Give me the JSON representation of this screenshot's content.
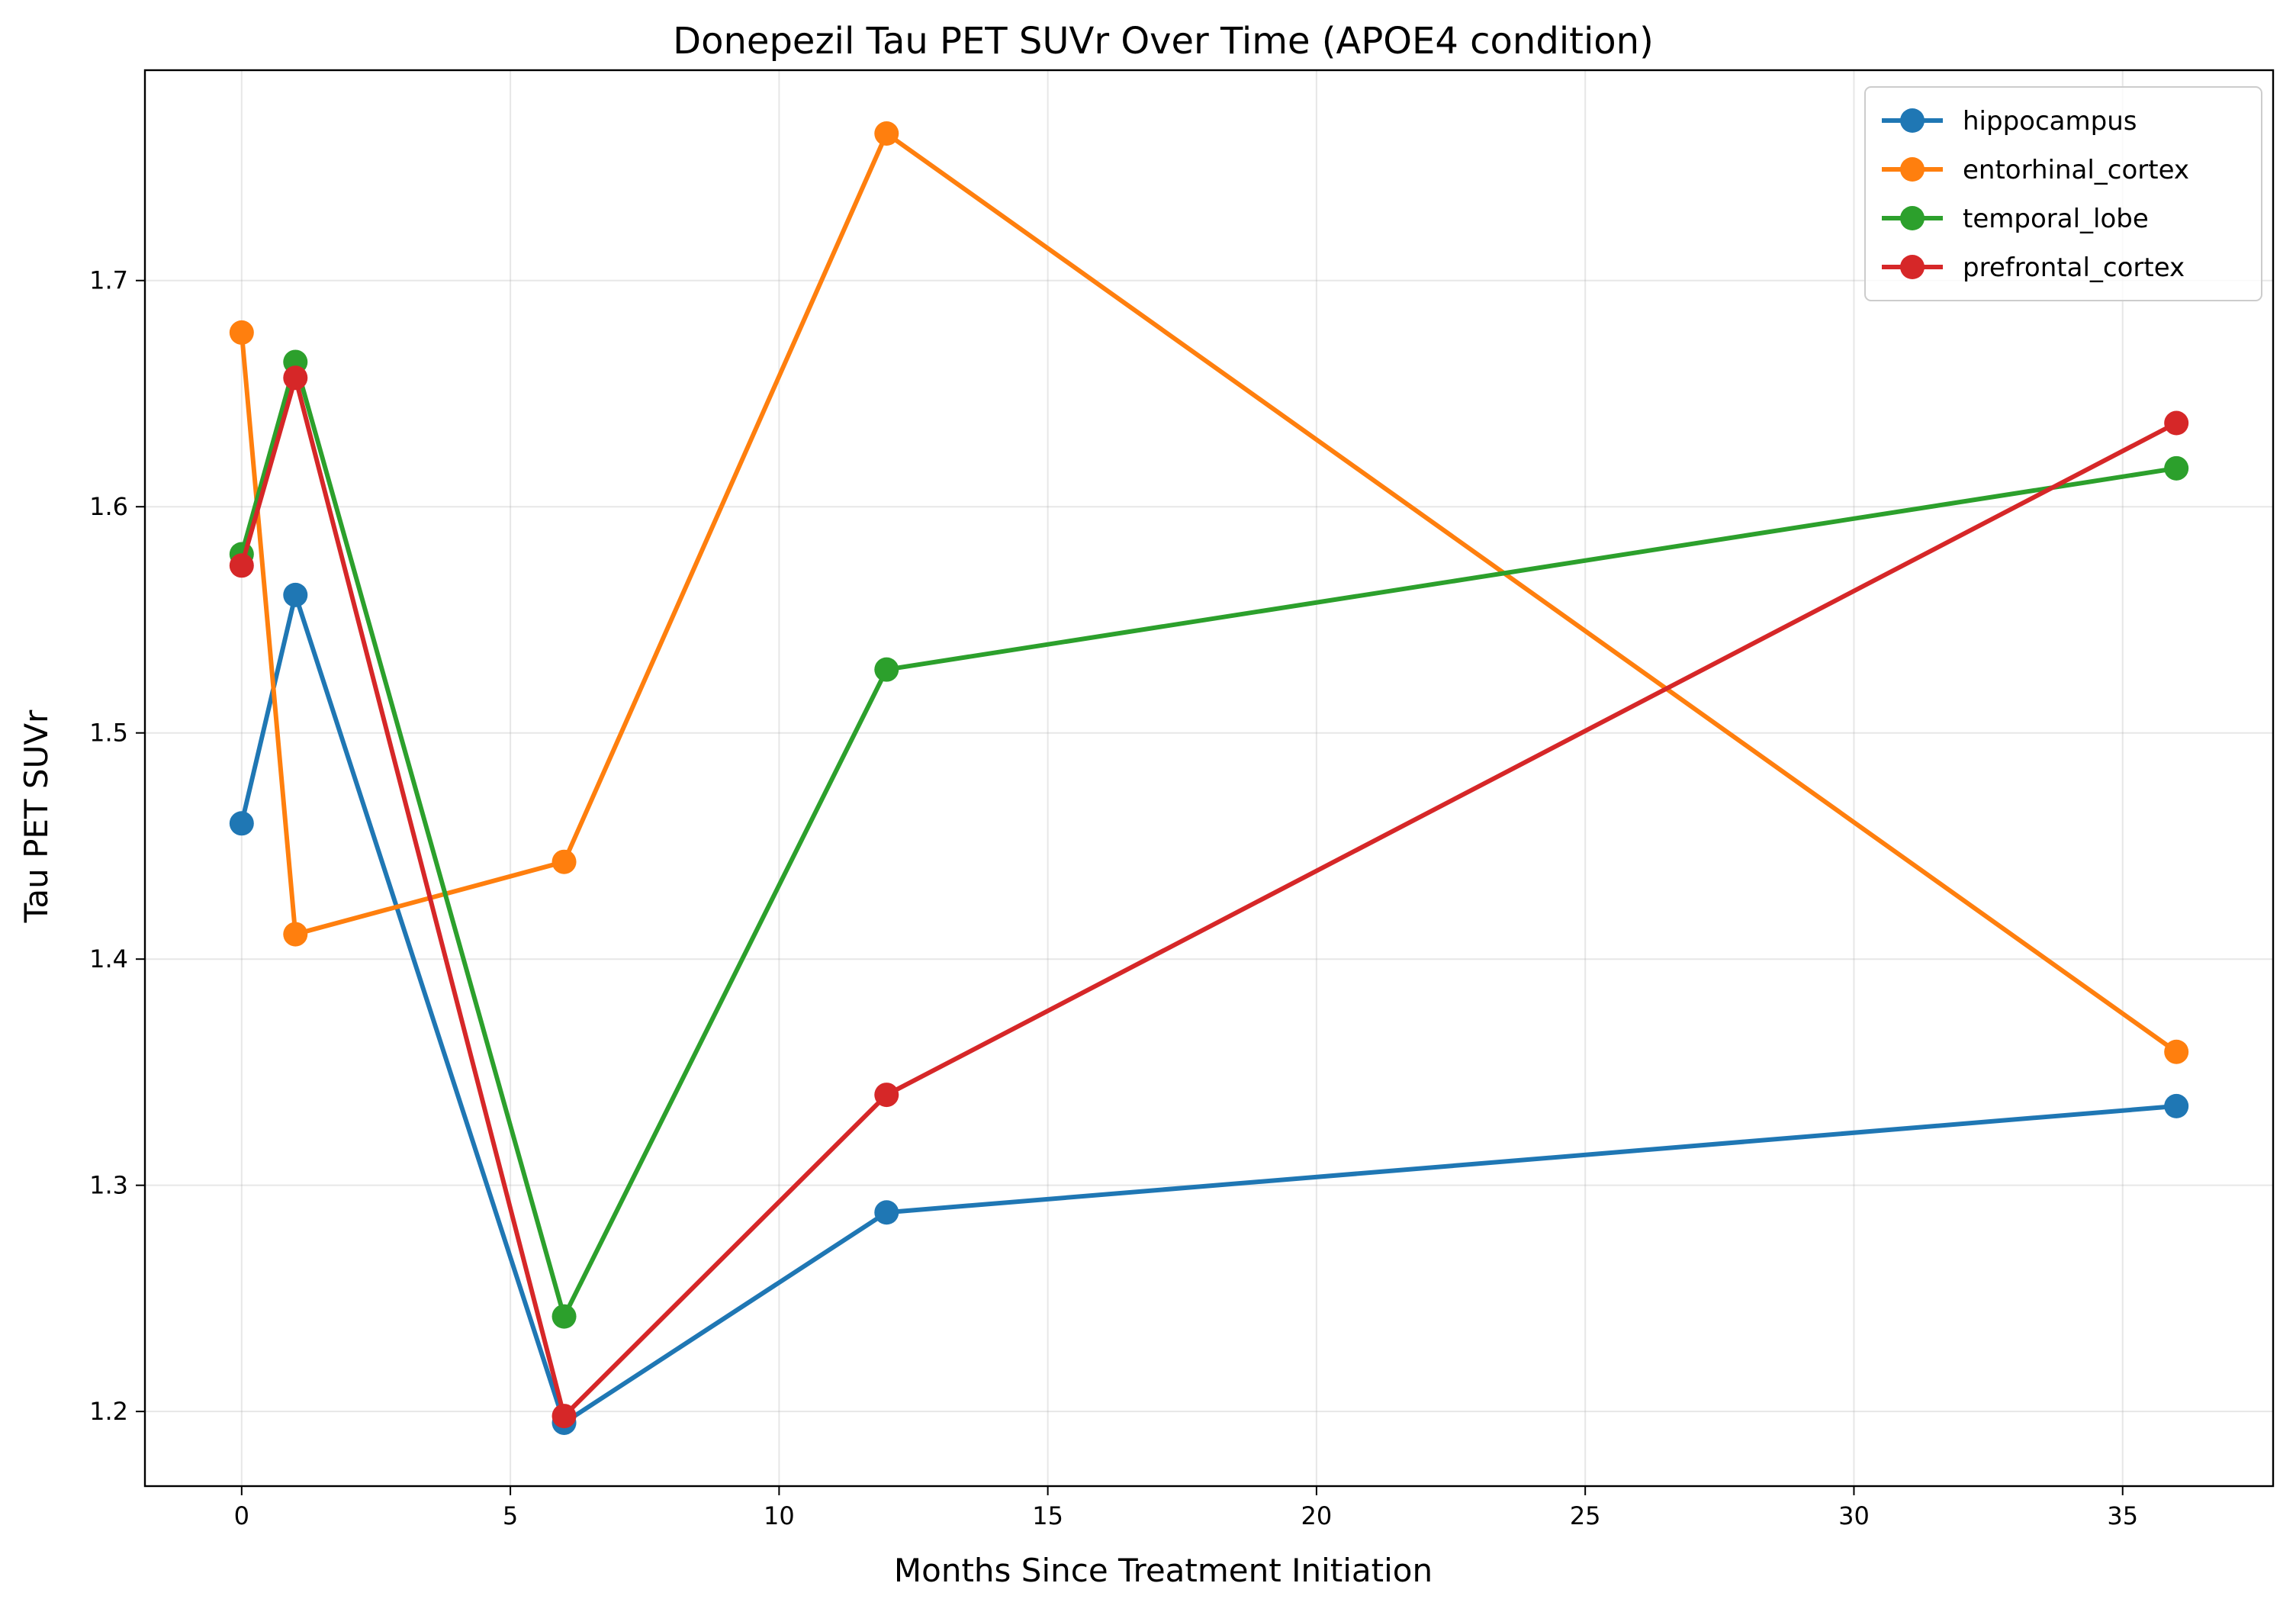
{
  "chart_data": {
    "type": "line",
    "title": "Donepezil Tau PET SUVr Over Time (APOE4 condition)",
    "xlabel": "Months Since Treatment Initiation",
    "ylabel": "Tau PET SUVr",
    "xlim": [
      -1.8,
      37.8
    ],
    "ylim": [
      1.167,
      1.793
    ],
    "xticks": [
      0,
      5,
      10,
      15,
      20,
      25,
      30,
      35
    ],
    "yticks": [
      1.2,
      1.3,
      1.4,
      1.5,
      1.6,
      1.7
    ],
    "ytick_labels": [
      "1.2",
      "1.3",
      "1.4",
      "1.5",
      "1.6",
      "1.7"
    ],
    "grid": true,
    "legend_position": "top-right",
    "x": [
      0,
      1,
      6,
      12,
      36
    ],
    "series": [
      {
        "name": "hippocampus",
        "color": "#1f77b4",
        "values": [
          1.46,
          1.561,
          1.195,
          1.288,
          1.335
        ]
      },
      {
        "name": "entorhinal_cortex",
        "color": "#ff7f0e",
        "values": [
          1.677,
          1.411,
          1.443,
          1.765,
          1.359
        ]
      },
      {
        "name": "temporal_lobe",
        "color": "#2ca02c",
        "values": [
          1.579,
          1.664,
          1.242,
          1.528,
          1.617
        ]
      },
      {
        "name": "prefrontal_cortex",
        "color": "#d62728",
        "values": [
          1.574,
          1.657,
          1.198,
          1.34,
          1.637
        ]
      }
    ]
  }
}
